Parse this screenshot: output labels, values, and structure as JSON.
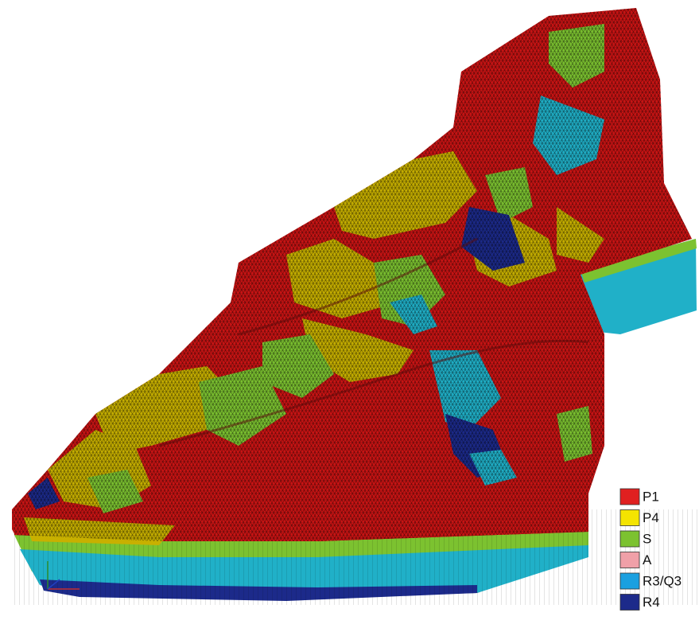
{
  "legend": {
    "items": [
      {
        "label": "P1",
        "color": "#e02020"
      },
      {
        "label": "P4",
        "color": "#f4e400"
      },
      {
        "label": "S",
        "color": "#7cc230"
      },
      {
        "label": "A",
        "color": "#f0a0a8"
      },
      {
        "label": "R3/Q3",
        "color": "#1aa0e0"
      },
      {
        "label": "R4",
        "color": "#1c2a8a"
      }
    ]
  }
}
